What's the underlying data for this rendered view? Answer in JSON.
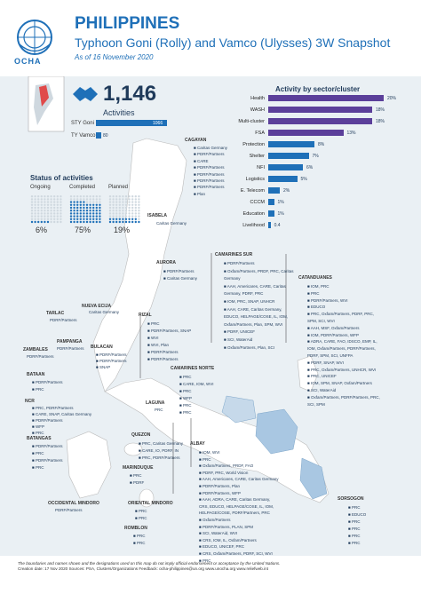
{
  "header": {
    "org": "OCHA",
    "title": "PHILIPPINES",
    "subtitle": "Typhoon Goni (Rolly) and Vamco (Ulysses) 3W Snapshot",
    "date": "As of 16 November 2020"
  },
  "summary": {
    "total": "1,146",
    "total_label": "Activities",
    "sty_goni_label": "STY Goni",
    "sty_goni_value": "1066",
    "sty_goni_frac": 1.0,
    "ty_vamco_label": "TY Vamco",
    "ty_vamco_value": "80",
    "ty_vamco_frac": 0.075
  },
  "status": {
    "title": "Status of activities",
    "items": [
      {
        "label": "Ongoing",
        "pct": "6%",
        "filled": 0.06
      },
      {
        "label": "Completed",
        "pct": "75%",
        "filled": 0.75
      },
      {
        "label": "Planned",
        "pct": "19%",
        "filled": 0.19
      }
    ]
  },
  "chart_data": {
    "type": "bar",
    "title": "Activity by sector/cluster",
    "categories": [
      "Health",
      "WASH",
      "Multi-cluster",
      "FSA",
      "Protection",
      "Shelter",
      "NFI",
      "Logistics",
      "E. Telecom",
      "CCCM",
      "Education",
      "Livelihood"
    ],
    "values": [
      20,
      18,
      18,
      13,
      8,
      7,
      6,
      5,
      2,
      1,
      1,
      0.4
    ],
    "labels": [
      "20%",
      "18%",
      "18%",
      "13%",
      "8%",
      "7%",
      "6%",
      "5%",
      "2%",
      "1%",
      "1%",
      "0.4"
    ]
  },
  "provinces": {
    "cagayan": "CAGAYAN",
    "isabela": "ISABELA",
    "aurora": "AURORA",
    "nueva_ecija": "NUEVA ECIJA",
    "tarlac": "TARLAC",
    "pampanga": "PAMPANGA",
    "zambales": "ZAMBALES",
    "bulacan": "BULACAN",
    "bataan": "BATAAN",
    "rizal": "RIZAL",
    "ncr": "NCR",
    "batangas": "BATANGAS",
    "laguna": "LAGUNA",
    "quezon": "QUEZON",
    "marinduque": "MARINDUQUE",
    "occ_mindoro": "OCCIDENTAL MINDORO",
    "or_mindoro": "ORIENTAL MINDORO",
    "romblon": "ROMBLON",
    "camarines_norte": "CAMARINES NORTE",
    "camarines_sur": "CAMARINES SUR",
    "catanduanes": "CATANDUANES",
    "albay": "ALBAY",
    "sorsogon": "SORSOGON"
  },
  "orgs": {
    "cagayan": [
      "Caritas Germany",
      "PDRF/Partners",
      "CARE",
      "PDRF/Partners",
      "PDRF/Partners",
      "PDRF/Partners",
      "PDRF/Partners",
      "Plan"
    ],
    "isabela": "Caritas Germany",
    "aurora": [
      "PDRF/Partners",
      "Caritas Germany"
    ],
    "nueva_ecija": "Caritas Germany",
    "tarlac": "PDRF/Partners",
    "zambales": "PDRF/Partners",
    "pampanga": "PDRF/Partners",
    "bulacan": [
      "PDRF/Partners",
      "PDRF/Partners",
      "SNAP"
    ],
    "bataan": [
      "PDRF/Partners",
      "PRC"
    ],
    "rizal": [
      "PRC",
      "PDRF/Partners, SNAP",
      "WVI",
      "WVI, Plan",
      "PDRF/Partners",
      "PDRF/Partners"
    ],
    "ncr": [
      "PRC, PDRF/Partners",
      "CARE, SNAP, Caritas Germany",
      "PDRF/Partners",
      "WFP",
      "PRC"
    ],
    "batangas": [
      "PDRF/Partners",
      "PRC",
      "PDRF/Partners",
      "PRC"
    ],
    "laguna": "PRC",
    "quezon": [
      "PRC, Caritas Germany",
      "CARE, IO, PDRF, IN",
      "PRC, PDRF/Partners"
    ],
    "marinduque": [
      "PRC",
      "PDRF"
    ],
    "occ_mindoro": "PDRF/Partners",
    "or_mindoro": [
      "PRC",
      "PRC"
    ],
    "romblon": [
      "PRC",
      "PRC"
    ],
    "camarines_norte": [
      "PRC",
      "CARE, IOM, WVI",
      "PRC",
      "WFP",
      "PRC",
      "PRC"
    ],
    "camarines_sur": [
      "PDRF/Partners",
      "Oxfam/Partners, PRDF, PRC, Caritas Germany",
      "AAH, Americares, CARE, Caritas Germany, PDRF, PRC",
      "IOM, PRC, SNAP, UNHCR",
      "AAH, CARE, Caritas Germany, EDUCO, HELPAGE/COSE, IL, IOM, Oxfam/Partners, Plan, SPM, WVI",
      "PDRF, UNICEF",
      "SCI, WaterAid",
      "Oxfam/Partners, Plan, SCI"
    ],
    "catanduanes": [
      "IOM, PRC",
      "PRC",
      "PDRF/Partners, WVI",
      "EDUCO",
      "PRC, Oxfam/Partners, PDRF, PRC, SPM, SCI, WVI",
      "AAH, MSF, Oxfam/Partners",
      "IOM, PDRF/Partners, WFP",
      "ADRA, CARE, FAO, IDSCO, EMP, IL, IOM, Oxfam/Partners, PDRF/Partners, PDRF, SPM, SCI, UNFPA",
      "PDRF, SNAP, WVI",
      "PRC, Oxfam/Partners, UNHCR, WVI",
      "PRC, UNICEF",
      "IOM, SPM, SNAP, Oxfam/Partners",
      "SCI, WaterAid",
      "Oxfam/Partners, PDRF/Partners, PRC, SCI, SPM"
    ],
    "albay": [
      "IOM, WVI",
      "PRC",
      "Oxfam/Partners, PRDF, FAO",
      "PDRF, PRC, World Vision",
      "AAH, Americares, CARE, Caritas Germany",
      "PDRF/Partners, Plan",
      "PDRF/Partners, WFP",
      "AAH, ADRA, CARE, Caritas Germany, CRS, EDUCO, HELPAGE/COSE, IL, IOM, HELPAGE/COSE, PDRF/Partners, PRC",
      "Oxfam/Partners",
      "PDRF/Partners, PLAN, SPM",
      "SCI, WaterAid, WVI",
      "CRS, IOM, IL, Oxfam/Partners",
      "EDUCO, UNICEF, PRC",
      "CRS, Oxfam/Partners, PDRF, SCI, WVI",
      "PRC"
    ],
    "sorsogon": [
      "PRC",
      "EDUCO",
      "PRC",
      "PRC",
      "PRC",
      "PRC"
    ]
  },
  "footer": {
    "disclaimer": "The boundaries and names shown and the designations used on this map do not imply official endorsement or acceptance by the United Nations.",
    "line2": "Creation date: 17 Nov 2020   Sources: PSA, Clusters/Organizations   Feedback: ocha-philippines@un.org   www.unocha.org   www.reliefweb.int"
  }
}
